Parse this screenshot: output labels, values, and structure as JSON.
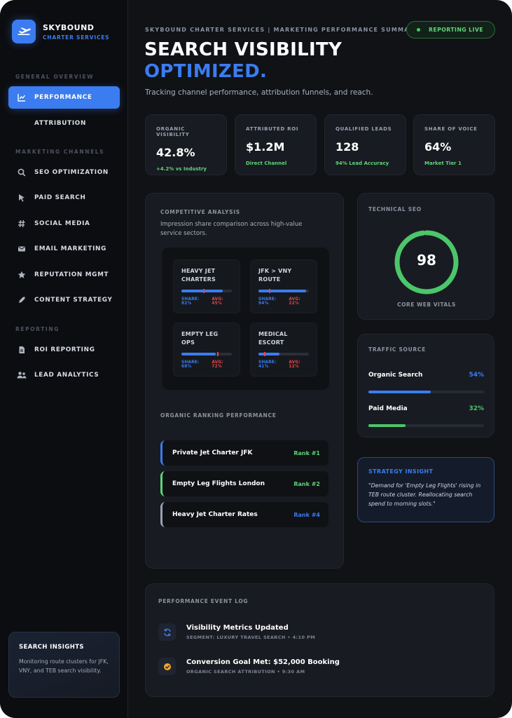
{
  "brand": {
    "name": "SKYBOUND",
    "sub": "CHARTER SERVICES"
  },
  "sidebar": {
    "sections": {
      "overview": "GENERAL OVERVIEW",
      "channels": "MARKETING CHANNELS",
      "reporting": "REPORTING"
    },
    "items": [
      {
        "label": "PERFORMANCE",
        "icon": "line-chart-icon",
        "active": true
      },
      {
        "label": "ATTRIBUTION",
        "icon": "",
        "active": false
      },
      {
        "label": "SEO OPTIMIZATION",
        "icon": "search-icon",
        "active": false
      },
      {
        "label": "PAID SEARCH",
        "icon": "cursor-icon",
        "active": false
      },
      {
        "label": "SOCIAL MEDIA",
        "icon": "hashtag-icon",
        "active": false
      },
      {
        "label": "EMAIL MARKETING",
        "icon": "envelope-icon",
        "active": false
      },
      {
        "label": "REPUTATION MGMT",
        "icon": "star-icon",
        "active": false
      },
      {
        "label": "CONTENT STRATEGY",
        "icon": "pen-icon",
        "active": false
      },
      {
        "label": "ROI REPORTING",
        "icon": "file-icon",
        "active": false
      },
      {
        "label": "LEAD ANALYTICS",
        "icon": "users-icon",
        "active": false
      }
    ],
    "insight": {
      "title": "SEARCH INSIGHTS",
      "text": "Monitoring route clusters for JFK, VNY, and TEB search visibility."
    }
  },
  "header": {
    "breadcrumb": "SKYBOUND CHARTER SERVICES | MARKETING PERFORMANCE SUMMARY",
    "status": "REPORTING LIVE",
    "title_line1": "SEARCH VISIBILITY",
    "title_line2": "OPTIMIZED.",
    "subtitle": "Tracking channel performance, attribution funnels, and reach."
  },
  "stats": [
    {
      "label": "ORGANIC VISIBILITY",
      "value": "42.8%",
      "sub": "+4.2% vs Industry"
    },
    {
      "label": "ATTRIBUTED ROI",
      "value": "$1.2M",
      "sub": "Direct Channel"
    },
    {
      "label": "QUALIFIED LEADS",
      "value": "128",
      "sub": "94% Lead Accuracy"
    },
    {
      "label": "SHARE OF VOICE",
      "value": "64%",
      "sub": "Market Tier 1"
    }
  ],
  "competitive": {
    "title": "COMPETITIVE ANALYSIS",
    "desc": "Impression share comparison across high-value service sectors.",
    "services": [
      {
        "name": "HEAVY JET CHARTERS",
        "share": 82,
        "avg": 45,
        "share_text": "SHARE: 82%",
        "avg_text": "AVG: 45%"
      },
      {
        "name": "JFK > VNY ROUTE",
        "share": 94,
        "avg": 22,
        "share_text": "SHARE: 94%",
        "avg_text": "AVG: 22%"
      },
      {
        "name": "EMPTY LEG OPS",
        "share": 68,
        "avg": 72,
        "share_text": "SHARE: 68%",
        "avg_text": "AVG: 72%"
      },
      {
        "name": "MEDICAL ESCORT",
        "share": 41,
        "avg": 12,
        "share_text": "SHARE: 41%",
        "avg_text": "AVG: 12%"
      }
    ]
  },
  "ranking": {
    "title": "ORGANIC RANKING PERFORMANCE",
    "rows": [
      {
        "keyword": "Private Jet Charter JFK",
        "rank": "Rank #1",
        "color": "#3b7cf0",
        "rank_color": "#5fd47a"
      },
      {
        "keyword": "Empty Leg Flights London",
        "rank": "Rank #2",
        "color": "#5fd47a",
        "rank_color": "#5fd47a"
      },
      {
        "keyword": "Heavy Jet Charter Rates",
        "rank": "Rank #4",
        "color": "#9aa2b0",
        "rank_color": "#3b7cf0"
      }
    ]
  },
  "technical": {
    "title": "TECHNICAL SEO",
    "score": "98",
    "score_value": 98,
    "label": "CORE WEB VITALS",
    "color": "#4cc66a"
  },
  "traffic": {
    "title": "TRAFFIC SOURCE",
    "rows": [
      {
        "label": "Organic Search",
        "pct": "54%",
        "value": 54,
        "color": "#3b7cf0"
      },
      {
        "label": "Paid Media",
        "pct": "32%",
        "value": 32,
        "color": "#4cc66a"
      }
    ]
  },
  "strategy": {
    "title": "STRATEGY INSIGHT",
    "text": "\"Demand for 'Empty Leg Flights' rising in TEB route cluster. Reallocating search spend to morning slots.\""
  },
  "events": {
    "title": "PERFORMANCE EVENT LOG",
    "items": [
      {
        "title": "Visibility Metrics Updated",
        "sub": "SEGMENT: LUXURY TRAVEL SEARCH • 4:10 PM",
        "icon": "refresh-icon"
      },
      {
        "title": "Conversion Goal Met: $52,000 Booking",
        "sub": "ORGANIC SEARCH ATTRIBUTION • 9:30 AM",
        "icon": "check-icon"
      }
    ]
  },
  "colors": {
    "accent": "#3b7cf0",
    "success": "#4cc66a",
    "danger": "#e04646",
    "background": "#101216"
  }
}
